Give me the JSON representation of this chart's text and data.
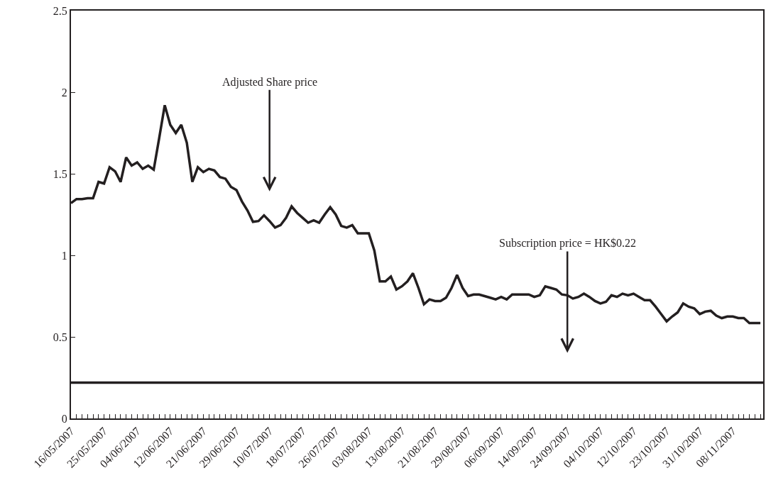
{
  "chart_data": {
    "type": "line",
    "categories": [
      "16/05/2007",
      null,
      null,
      null,
      null,
      null,
      "25/05/2007",
      null,
      null,
      null,
      null,
      null,
      "04/06/2007",
      null,
      null,
      null,
      null,
      null,
      "12/06/2007",
      null,
      null,
      null,
      null,
      null,
      "21/06/2007",
      null,
      null,
      null,
      null,
      null,
      "29/06/2007",
      null,
      null,
      null,
      null,
      null,
      "10/07/2007",
      null,
      null,
      null,
      null,
      null,
      "18/07/2007",
      null,
      null,
      null,
      null,
      null,
      "26/07/2007",
      null,
      null,
      null,
      null,
      null,
      "03/08/2007",
      null,
      null,
      null,
      null,
      null,
      "13/08/2007",
      null,
      null,
      null,
      null,
      null,
      "21/08/2007",
      null,
      null,
      null,
      null,
      null,
      "29/08/2007",
      null,
      null,
      null,
      null,
      null,
      "06/09/2007",
      null,
      null,
      null,
      null,
      null,
      "14/09/2007",
      null,
      null,
      null,
      null,
      null,
      "24/09/2007",
      null,
      null,
      null,
      null,
      null,
      "04/10/2007",
      null,
      null,
      null,
      null,
      null,
      "12/10/2007",
      null,
      null,
      null,
      null,
      null,
      "23/10/2007",
      null,
      null,
      null,
      null,
      null,
      "31/10/2007",
      null,
      null,
      null,
      null,
      null,
      "08/11/2007",
      null,
      null,
      null,
      null,
      null
    ],
    "series": [
      {
        "color": "#231f20",
        "values": [
          1.32,
          1.345,
          1.345,
          1.35,
          1.35,
          1.45,
          1.44,
          1.54,
          1.515,
          1.45,
          1.6,
          1.55,
          1.57,
          1.53,
          1.55,
          1.525,
          1.72,
          1.92,
          1.8,
          1.75,
          1.8,
          1.69,
          1.45,
          1.54,
          1.51,
          1.53,
          1.52,
          1.48,
          1.47,
          1.42,
          1.4,
          1.33,
          1.275,
          1.205,
          1.21,
          1.245,
          1.21,
          1.17,
          1.185,
          1.23,
          1.3,
          1.26,
          1.23,
          1.2,
          1.215,
          1.2,
          1.25,
          1.295,
          1.25,
          1.18,
          1.17,
          1.185,
          1.135,
          1.135,
          1.135,
          1.03,
          0.84,
          0.84,
          0.87,
          0.79,
          0.81,
          0.84,
          0.89,
          0.8,
          0.7,
          0.73,
          0.72,
          0.72,
          0.74,
          0.8,
          0.88,
          0.8,
          0.75,
          0.76,
          0.76,
          0.75,
          0.74,
          0.73,
          0.745,
          0.73,
          0.76,
          0.76,
          0.76,
          0.76,
          0.745,
          0.755,
          0.81,
          0.8,
          0.79,
          0.76,
          0.755,
          0.735,
          0.745,
          0.765,
          0.745,
          0.72,
          0.705,
          0.715,
          0.755,
          0.745,
          0.765,
          0.755,
          0.765,
          0.745,
          0.725,
          0.725,
          0.685,
          0.64,
          0.595,
          0.625,
          0.65,
          0.705,
          0.685,
          0.675,
          0.64,
          0.655,
          0.66,
          0.63,
          0.615,
          0.625,
          0.625,
          0.615,
          0.615,
          0.585,
          0.585,
          0.585
        ]
      }
    ],
    "ylim": [
      0,
      2.5
    ],
    "yticks": [
      0,
      0.5,
      1,
      1.5,
      2,
      2.5
    ],
    "ref_lines": [
      {
        "axis": "y",
        "value": 0.22,
        "color": "#231f20",
        "line_style": "solid"
      }
    ],
    "annotations": [
      {
        "text": "Adjusted Share price",
        "x": "10/07/2007",
        "y": 1.21
      },
      {
        "text": "Subscription price = HK$0.22",
        "x": "24/09/2007",
        "y": 0.22
      }
    ],
    "marker": "none",
    "line_style": "solid"
  }
}
